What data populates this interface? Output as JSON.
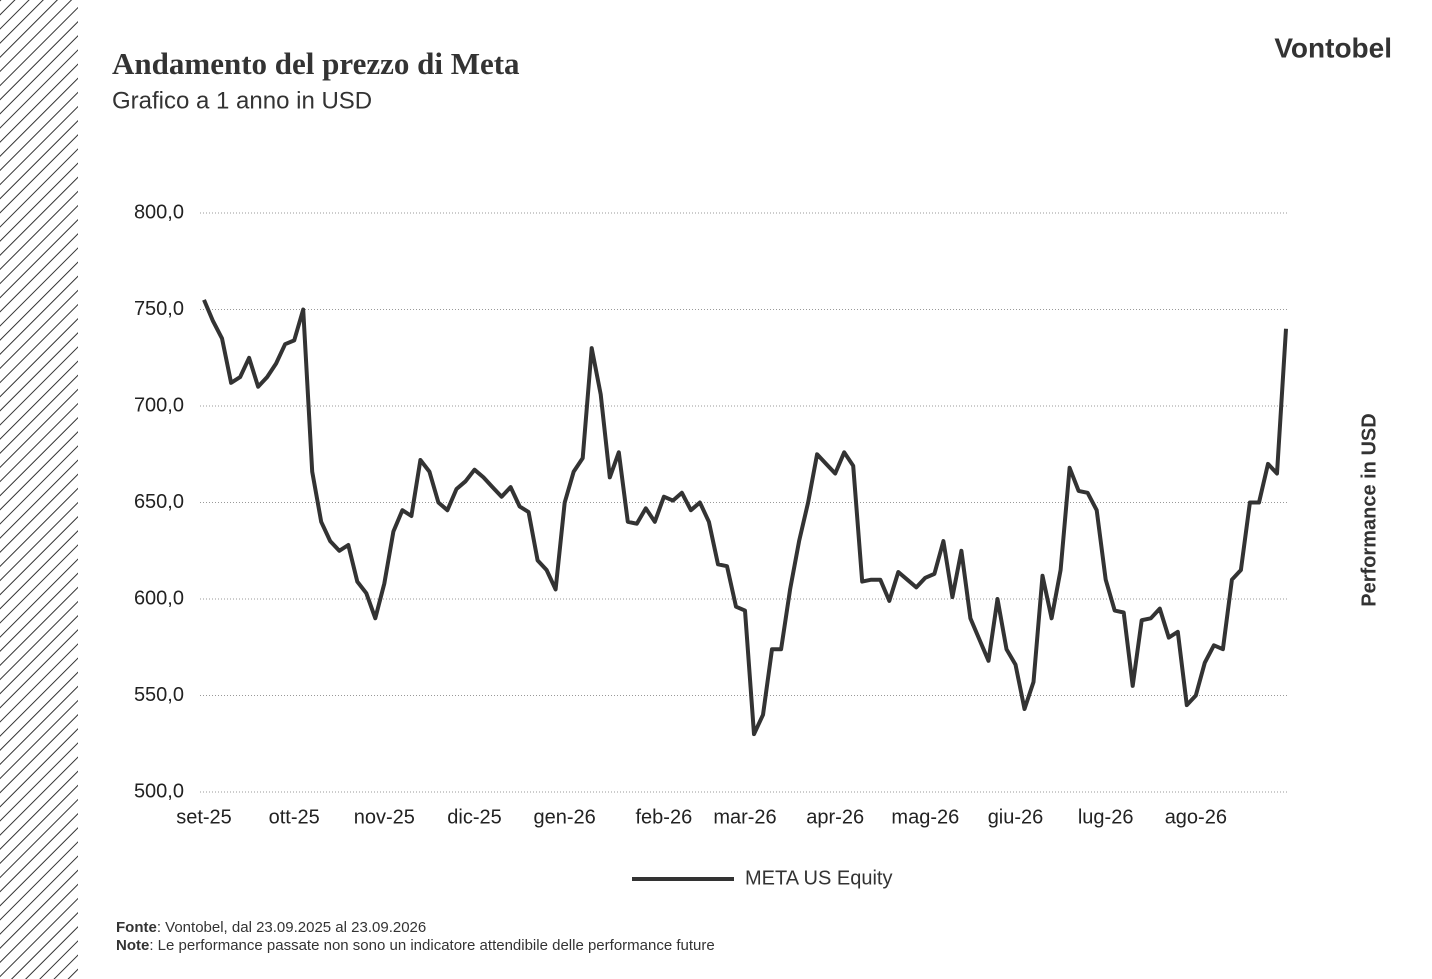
{
  "chart_data": {
    "type": "line",
    "title": "Andamento del prezzo di Meta",
    "subtitle": "Grafico a 1 anno in USD",
    "brand": "Vontobel",
    "y_axis_label": "Performance in USD",
    "categories": [
      "set-25",
      null,
      null,
      null,
      null,
      null,
      null,
      null,
      null,
      null,
      "ott-25",
      null,
      null,
      null,
      null,
      null,
      null,
      null,
      null,
      null,
      "nov-25",
      null,
      null,
      null,
      null,
      null,
      null,
      null,
      null,
      null,
      "dic-25",
      null,
      null,
      null,
      null,
      null,
      null,
      null,
      null,
      null,
      "gen-26",
      null,
      null,
      null,
      null,
      null,
      null,
      null,
      null,
      null,
      null,
      "feb-26",
      null,
      null,
      null,
      null,
      null,
      null,
      null,
      null,
      "mar-26",
      null,
      null,
      null,
      null,
      null,
      null,
      null,
      null,
      null,
      "apr-26",
      null,
      null,
      null,
      null,
      null,
      null,
      null,
      null,
      null,
      "mag-26",
      null,
      null,
      null,
      null,
      null,
      null,
      null,
      null,
      null,
      "giu-26",
      null,
      null,
      null,
      null,
      null,
      null,
      null,
      null,
      null,
      "lug-26",
      null,
      null,
      null,
      null,
      null,
      null,
      null,
      null,
      null,
      "ago-26",
      null,
      null,
      null,
      null,
      null,
      null,
      null,
      null,
      null,
      null
    ],
    "series": [
      {
        "name": "META US Equity",
        "color": "#333333",
        "values": [
          755,
          744,
          735,
          712,
          715,
          725,
          710,
          715,
          722,
          732,
          734,
          750,
          666,
          640,
          630,
          625,
          628,
          609,
          603,
          590,
          608,
          635,
          646,
          643,
          672,
          666,
          650,
          646,
          657,
          661,
          667,
          663,
          658,
          653,
          658,
          648,
          645,
          620,
          615,
          605,
          650,
          666,
          673,
          730,
          706,
          663,
          676,
          640,
          639,
          647,
          640,
          653,
          651,
          655,
          646,
          650,
          640,
          618,
          617,
          596,
          594,
          530,
          540,
          574,
          574,
          605,
          630,
          650,
          675,
          670,
          665,
          676,
          669,
          609,
          610,
          610,
          599,
          614,
          610,
          606,
          611,
          613,
          630,
          601,
          625,
          590,
          579,
          568,
          600,
          574,
          566,
          543,
          557,
          612,
          590,
          615,
          668,
          656,
          655,
          646,
          610,
          594,
          593,
          555,
          589,
          590,
          595,
          580,
          583,
          545,
          550,
          567,
          576,
          574,
          610,
          615,
          650,
          650,
          670,
          665,
          740
        ]
      }
    ],
    "ylim": [
      500,
      800
    ],
    "yticks": [
      {
        "value": 500,
        "label": "500,0"
      },
      {
        "value": 550,
        "label": "550,0"
      },
      {
        "value": 600,
        "label": "600,0"
      },
      {
        "value": 650,
        "label": "650,0"
      },
      {
        "value": 700,
        "label": "700,0"
      },
      {
        "value": 750,
        "label": "750,0"
      },
      {
        "value": 800,
        "label": "800,0"
      }
    ],
    "grid": true,
    "legend": "bottom",
    "footer": {
      "source_label": "Fonte",
      "source_text": ": Vontobel, dal 23.09.2025 al 23.09.2026",
      "note_label": "Note",
      "note_text": ": Le performance passate non sono un indicatore attendibile delle performance future"
    }
  }
}
